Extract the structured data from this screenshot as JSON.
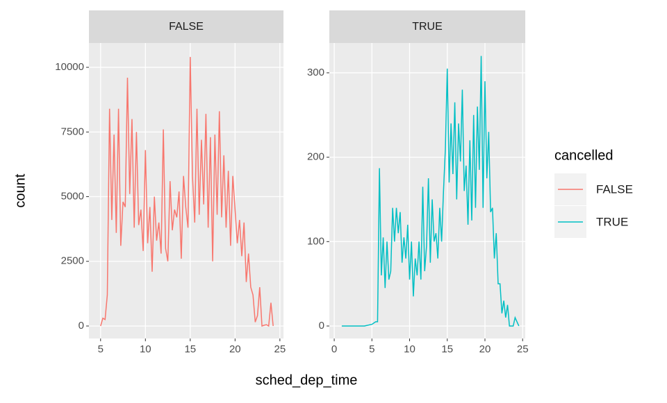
{
  "chart_data": [
    {
      "type": "line",
      "title": "FALSE",
      "xlabel": "sched_dep_time",
      "ylabel": "count",
      "legend_title": "cancelled",
      "x": [
        5,
        5.25,
        5.5,
        5.75,
        6,
        6.25,
        6.5,
        6.75,
        7,
        7.25,
        7.5,
        7.75,
        8,
        8.25,
        8.5,
        8.75,
        9,
        9.25,
        9.5,
        9.75,
        10,
        10.25,
        10.5,
        10.75,
        11,
        11.25,
        11.5,
        11.75,
        12,
        12.25,
        12.5,
        12.75,
        13,
        13.25,
        13.5,
        13.75,
        14,
        14.25,
        14.5,
        14.75,
        15,
        15.25,
        15.5,
        15.75,
        16,
        16.25,
        16.5,
        16.75,
        17,
        17.25,
        17.5,
        17.75,
        18,
        18.25,
        18.5,
        18.75,
        19,
        19.25,
        19.5,
        19.75,
        20,
        20.25,
        20.5,
        20.75,
        21,
        21.25,
        21.5,
        21.75,
        22,
        22.25,
        22.5,
        22.75,
        23,
        23.25,
        23.5,
        23.75,
        24,
        24.25
      ],
      "series": [
        {
          "name": "FALSE",
          "color": "#F8766D",
          "values": [
            0,
            300,
            250,
            1200,
            8400,
            4100,
            7400,
            3600,
            8400,
            3100,
            4800,
            4600,
            9600,
            5100,
            8000,
            3800,
            7500,
            3900,
            4500,
            2900,
            6800,
            3200,
            4600,
            2100,
            5000,
            3300,
            4000,
            2800,
            7600,
            3000,
            2500,
            5600,
            3700,
            4500,
            4200,
            5200,
            2600,
            5800,
            4600,
            3800,
            10400,
            5800,
            4000,
            8400,
            4300,
            7200,
            4700,
            8200,
            3800,
            7300,
            2500,
            7400,
            4300,
            8300,
            4200,
            6600,
            3800,
            6000,
            3100,
            5800,
            4500,
            3200,
            4100,
            2700,
            4000,
            1700,
            2800,
            1500,
            1200,
            150,
            400,
            1500,
            0,
            30,
            50,
            0,
            900,
            0
          ]
        }
      ],
      "xlim": [
        3.7,
        25.4
      ],
      "ylim": [
        -483,
        10940
      ],
      "xticks": [
        5,
        10,
        15,
        20,
        25
      ],
      "yticks": [
        0,
        2500,
        5000,
        7500,
        10000
      ],
      "grid": true
    },
    {
      "type": "line",
      "title": "TRUE",
      "x": [
        1,
        2,
        3,
        4,
        5,
        5.5,
        5.75,
        6,
        6.25,
        6.5,
        6.75,
        7,
        7.25,
        7.5,
        7.75,
        8,
        8.25,
        8.5,
        8.75,
        9,
        9.25,
        9.5,
        9.75,
        10,
        10.25,
        10.5,
        10.75,
        11,
        11.25,
        11.5,
        11.75,
        12,
        12.25,
        12.5,
        12.75,
        13,
        13.25,
        13.5,
        13.75,
        14,
        14.25,
        14.5,
        14.75,
        15,
        15.25,
        15.5,
        15.75,
        16,
        16.25,
        16.5,
        16.75,
        17,
        17.25,
        17.5,
        17.75,
        18,
        18.25,
        18.5,
        18.75,
        19,
        19.25,
        19.5,
        19.75,
        20,
        20.25,
        20.5,
        20.75,
        21,
        21.25,
        21.5,
        21.75,
        22,
        22.25,
        22.5,
        22.75,
        23,
        23.25,
        23.5,
        23.75,
        24,
        24.25,
        24.5
      ],
      "series": [
        {
          "name": "TRUE",
          "color": "#00BFC4",
          "values": [
            0,
            0,
            0,
            0,
            2,
            5,
            5,
            187,
            60,
            105,
            45,
            100,
            55,
            65,
            140,
            100,
            140,
            110,
            135,
            75,
            105,
            80,
            120,
            55,
            100,
            35,
            80,
            60,
            100,
            55,
            165,
            65,
            95,
            175,
            75,
            150,
            100,
            110,
            80,
            140,
            100,
            160,
            210,
            305,
            170,
            240,
            180,
            265,
            150,
            240,
            195,
            280,
            160,
            190,
            120,
            220,
            125,
            250,
            140,
            260,
            185,
            320,
            140,
            290,
            175,
            230,
            135,
            140,
            80,
            110,
            50,
            50,
            15,
            30,
            10,
            25,
            0,
            0,
            0,
            10,
            5,
            0
          ]
        }
      ],
      "xlim": [
        -0.65,
        25.35
      ],
      "ylim": [
        -14.8,
        335.3
      ],
      "xticks": [
        0,
        5,
        10,
        15,
        20,
        25
      ],
      "yticks": [
        0,
        100,
        200,
        300
      ],
      "grid": true
    }
  ]
}
